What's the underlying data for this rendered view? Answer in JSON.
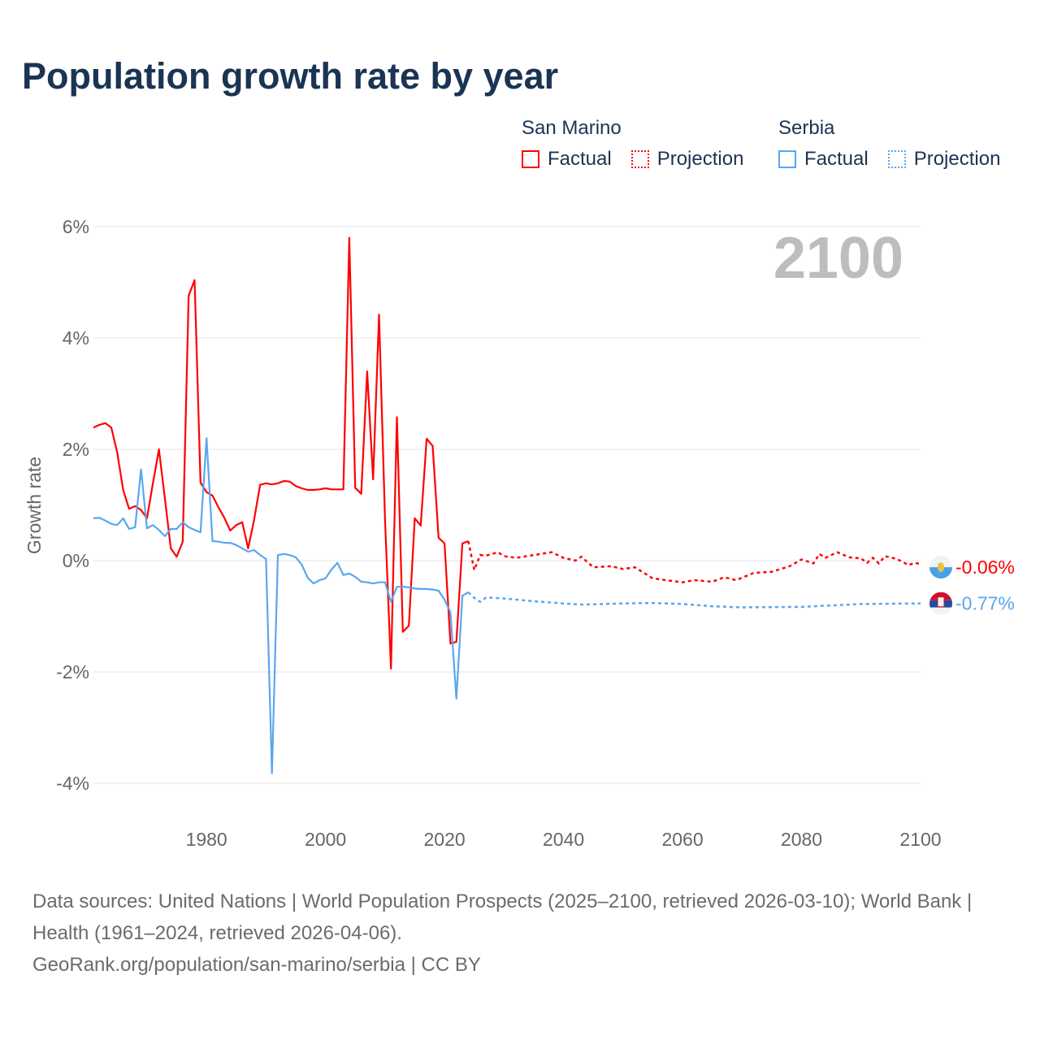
{
  "title": "Population growth rate by year",
  "legend": {
    "groups": [
      {
        "name": "San Marino",
        "factual": "Factual",
        "projection": "Projection",
        "color": "#ff0000"
      },
      {
        "name": "Serbia",
        "factual": "Factual",
        "projection": "Projection",
        "color": "#5aa6ee"
      }
    ]
  },
  "year_badge": "2100",
  "source": {
    "line1": "Data sources: United Nations | World Population Prospects (2025–2100, retrieved 2026-03-10); World Bank | Health (1961–2024, retrieved 2026-04-06).",
    "line2": "GeoRank.org/population/san-marino/serbia | CC BY"
  },
  "chart_data": {
    "type": "line",
    "title": "Population growth rate by year",
    "xlabel": "",
    "ylabel": "Growth rate",
    "xlim": [
      1961,
      2100
    ],
    "ylim": [
      -4.5,
      6.3
    ],
    "x_ticks": [
      {
        "v": 1980,
        "label": "1980"
      },
      {
        "v": 2000,
        "label": "2000"
      },
      {
        "v": 2020,
        "label": "2020"
      },
      {
        "v": 2040,
        "label": "2040"
      },
      {
        "v": 2060,
        "label": "2060"
      },
      {
        "v": 2080,
        "label": "2080"
      },
      {
        "v": 2100,
        "label": "2100"
      }
    ],
    "y_ticks": [
      {
        "v": 6,
        "label": "6%"
      },
      {
        "v": 4,
        "label": "4%"
      },
      {
        "v": 2,
        "label": "2%"
      },
      {
        "v": 0,
        "label": "0%"
      },
      {
        "v": -2,
        "label": "-2%"
      },
      {
        "v": -4,
        "label": "-4%"
      }
    ],
    "grid": true,
    "series": [
      {
        "name": "San Marino",
        "color": "#ff0000",
        "end_label": "-0.06%",
        "factual": [
          [
            1961,
            2.39
          ],
          [
            1962,
            2.44
          ],
          [
            1963,
            2.47
          ],
          [
            1964,
            2.39
          ],
          [
            1965,
            1.94
          ],
          [
            1966,
            1.27
          ],
          [
            1967,
            0.93
          ],
          [
            1968,
            0.98
          ],
          [
            1969,
            0.91
          ],
          [
            1970,
            0.76
          ],
          [
            1971,
            1.39
          ],
          [
            1972,
            2.0
          ],
          [
            1973,
            1.12
          ],
          [
            1974,
            0.22
          ],
          [
            1975,
            0.07
          ],
          [
            1976,
            0.34
          ],
          [
            1977,
            4.76
          ],
          [
            1978,
            5.04
          ],
          [
            1979,
            1.4
          ],
          [
            1980,
            1.23
          ],
          [
            1981,
            1.17
          ],
          [
            1982,
            0.96
          ],
          [
            1983,
            0.77
          ],
          [
            1984,
            0.54
          ],
          [
            1985,
            0.64
          ],
          [
            1986,
            0.69
          ],
          [
            1987,
            0.22
          ],
          [
            1988,
            0.73
          ],
          [
            1989,
            1.36
          ],
          [
            1990,
            1.39
          ],
          [
            1991,
            1.37
          ],
          [
            1992,
            1.39
          ],
          [
            1993,
            1.43
          ],
          [
            1994,
            1.42
          ],
          [
            1995,
            1.34
          ],
          [
            1996,
            1.3
          ],
          [
            1997,
            1.27
          ],
          [
            1998,
            1.27
          ],
          [
            1999,
            1.28
          ],
          [
            2000,
            1.3
          ],
          [
            2001,
            1.28
          ],
          [
            2002,
            1.28
          ],
          [
            2003,
            1.28
          ],
          [
            2004,
            5.8
          ],
          [
            2005,
            1.31
          ],
          [
            2006,
            1.2
          ],
          [
            2007,
            3.4
          ],
          [
            2008,
            1.46
          ],
          [
            2009,
            4.42
          ],
          [
            2010,
            0.73
          ],
          [
            2011,
            -1.94
          ],
          [
            2012,
            2.58
          ],
          [
            2013,
            -1.28
          ],
          [
            2014,
            -1.17
          ],
          [
            2015,
            0.76
          ],
          [
            2016,
            0.63
          ],
          [
            2017,
            2.19
          ],
          [
            2018,
            2.06
          ],
          [
            2019,
            0.41
          ],
          [
            2020,
            0.31
          ],
          [
            2021,
            -1.49
          ],
          [
            2022,
            -1.46
          ],
          [
            2023,
            0.31
          ],
          [
            2024,
            0.35
          ]
        ],
        "projection": [
          [
            2024,
            0.35
          ],
          [
            2025,
            -0.17
          ],
          [
            2026,
            0.1
          ],
          [
            2027,
            0.09
          ],
          [
            2028,
            0.12
          ],
          [
            2029,
            0.15
          ],
          [
            2030,
            0.08
          ],
          [
            2032,
            0.05
          ],
          [
            2035,
            0.1
          ],
          [
            2038,
            0.15
          ],
          [
            2040,
            0.05
          ],
          [
            2042,
            0.0
          ],
          [
            2043,
            0.07
          ],
          [
            2045,
            -0.12
          ],
          [
            2048,
            -0.1
          ],
          [
            2050,
            -0.15
          ],
          [
            2052,
            -0.12
          ],
          [
            2055,
            -0.32
          ],
          [
            2060,
            -0.39
          ],
          [
            2062,
            -0.35
          ],
          [
            2065,
            -0.38
          ],
          [
            2067,
            -0.3
          ],
          [
            2069,
            -0.35
          ],
          [
            2072,
            -0.22
          ],
          [
            2075,
            -0.2
          ],
          [
            2078,
            -0.1
          ],
          [
            2080,
            0.02
          ],
          [
            2082,
            -0.05
          ],
          [
            2083,
            0.12
          ],
          [
            2084,
            0.05
          ],
          [
            2086,
            0.15
          ],
          [
            2088,
            0.06
          ],
          [
            2090,
            0.04
          ],
          [
            2091,
            -0.04
          ],
          [
            2092,
            0.05
          ],
          [
            2093,
            -0.05
          ],
          [
            2094,
            0.08
          ],
          [
            2096,
            0.03
          ],
          [
            2098,
            -0.08
          ],
          [
            2099,
            -0.04
          ],
          [
            2100,
            -0.06
          ]
        ]
      },
      {
        "name": "Serbia",
        "color": "#5aa6ee",
        "end_label": "-0.77%",
        "factual": [
          [
            1961,
            0.76
          ],
          [
            1962,
            0.77
          ],
          [
            1963,
            0.72
          ],
          [
            1964,
            0.66
          ],
          [
            1965,
            0.64
          ],
          [
            1966,
            0.76
          ],
          [
            1967,
            0.57
          ],
          [
            1968,
            0.6
          ],
          [
            1969,
            1.64
          ],
          [
            1970,
            0.58
          ],
          [
            1971,
            0.64
          ],
          [
            1972,
            0.55
          ],
          [
            1973,
            0.44
          ],
          [
            1974,
            0.57
          ],
          [
            1975,
            0.57
          ],
          [
            1976,
            0.69
          ],
          [
            1977,
            0.6
          ],
          [
            1978,
            0.55
          ],
          [
            1979,
            0.51
          ],
          [
            1980,
            2.2
          ],
          [
            1981,
            0.35
          ],
          [
            1982,
            0.34
          ],
          [
            1983,
            0.32
          ],
          [
            1984,
            0.32
          ],
          [
            1985,
            0.28
          ],
          [
            1986,
            0.22
          ],
          [
            1987,
            0.16
          ],
          [
            1988,
            0.19
          ],
          [
            1989,
            0.1
          ],
          [
            1990,
            0.03
          ],
          [
            1991,
            -3.82
          ],
          [
            1992,
            0.1
          ],
          [
            1993,
            0.12
          ],
          [
            1994,
            0.1
          ],
          [
            1995,
            0.06
          ],
          [
            1996,
            -0.07
          ],
          [
            1997,
            -0.31
          ],
          [
            1998,
            -0.41
          ],
          [
            1999,
            -0.35
          ],
          [
            2000,
            -0.32
          ],
          [
            2001,
            -0.16
          ],
          [
            2002,
            -0.04
          ],
          [
            2003,
            -0.26
          ],
          [
            2004,
            -0.23
          ],
          [
            2005,
            -0.29
          ],
          [
            2006,
            -0.38
          ],
          [
            2007,
            -0.39
          ],
          [
            2008,
            -0.41
          ],
          [
            2009,
            -0.39
          ],
          [
            2010,
            -0.39
          ],
          [
            2011,
            -0.74
          ],
          [
            2012,
            -0.47
          ],
          [
            2013,
            -0.47
          ],
          [
            2014,
            -0.48
          ],
          [
            2015,
            -0.5
          ],
          [
            2016,
            -0.51
          ],
          [
            2017,
            -0.51
          ],
          [
            2018,
            -0.52
          ],
          [
            2019,
            -0.54
          ],
          [
            2020,
            -0.7
          ],
          [
            2021,
            -0.93
          ],
          [
            2022,
            -2.48
          ],
          [
            2023,
            -0.63
          ],
          [
            2024,
            -0.57
          ]
        ],
        "projection": [
          [
            2024,
            -0.57
          ],
          [
            2025,
            -0.67
          ],
          [
            2026,
            -0.74
          ],
          [
            2027,
            -0.66
          ],
          [
            2030,
            -0.68
          ],
          [
            2035,
            -0.73
          ],
          [
            2040,
            -0.77
          ],
          [
            2043,
            -0.79
          ],
          [
            2050,
            -0.77
          ],
          [
            2055,
            -0.76
          ],
          [
            2060,
            -0.78
          ],
          [
            2065,
            -0.82
          ],
          [
            2070,
            -0.84
          ],
          [
            2080,
            -0.83
          ],
          [
            2090,
            -0.78
          ],
          [
            2100,
            -0.77
          ]
        ]
      }
    ]
  }
}
